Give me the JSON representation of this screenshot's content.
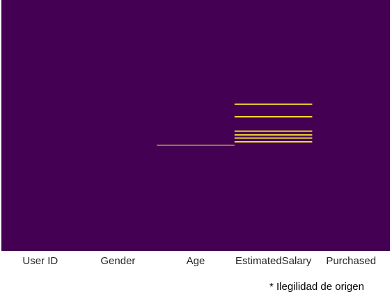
{
  "chart_data": {
    "type": "heatmap",
    "title": "",
    "columns": [
      "User ID",
      "Gender",
      "Age",
      "EstimatedSalary",
      "Purchased"
    ],
    "n_rows": 400,
    "description_values": "boolean missing-value mask (true = missing)",
    "missing_rows": {
      "User ID": [],
      "Gender": [],
      "Age": [
        231
      ],
      "EstimatedSalary": [
        165,
        166,
        185,
        186,
        208,
        209,
        214,
        215,
        219,
        220,
        225,
        226
      ],
      "Purchased": []
    },
    "colors": {
      "present": "#440154",
      "missing": "#fde725"
    },
    "colorbar": false,
    "grid": false
  },
  "footnote": "* Ilegilidad de origen"
}
